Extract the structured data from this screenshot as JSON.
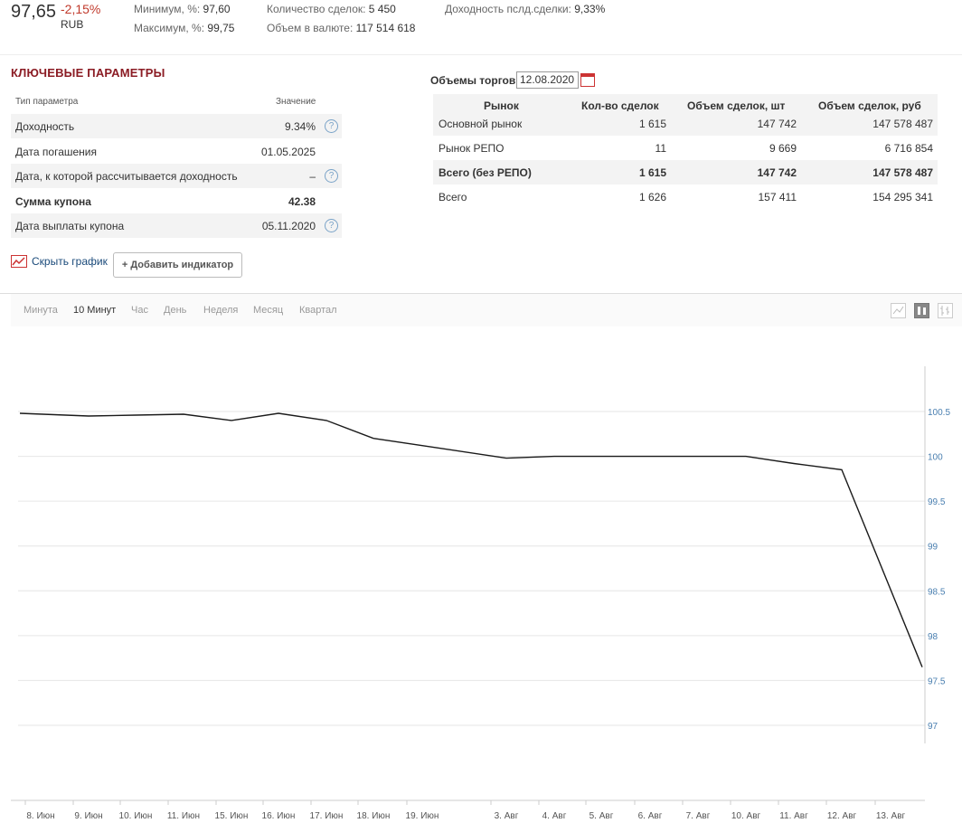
{
  "header": {
    "price": "97,65",
    "change": "-2,15%",
    "currency": "RUB",
    "stats": [
      {
        "label": "Минимум, %:",
        "value": "97,60"
      },
      {
        "label": "Максимум, %:",
        "value": "99,75"
      },
      {
        "label": "Количество сделок:",
        "value": "5 450"
      },
      {
        "label": "Объем в валюте:",
        "value": "117 514 618"
      },
      {
        "label": "Доходность пслд.сделки:",
        "value": "9,33%"
      }
    ]
  },
  "key_params": {
    "title": "КЛЮЧЕВЫЕ ПАРАМЕТРЫ",
    "col_name": "Тип параметра",
    "col_value": "Значение",
    "rows": [
      {
        "name": "Доходность",
        "value": "9.34%",
        "help": true,
        "bold": false
      },
      {
        "name": "Дата погашения",
        "value": "01.05.2025",
        "help": false,
        "bold": false
      },
      {
        "name": "Дата, к которой рассчитывается доходность",
        "value": "–",
        "help": true,
        "bold": false
      },
      {
        "name": "Сумма купона",
        "value": "42.38",
        "help": false,
        "bold": true
      },
      {
        "name": "Дата выплаты купона",
        "value": "05.11.2020",
        "help": true,
        "bold": false
      }
    ],
    "hide_chart": "Скрыть график",
    "add_indicator": "+ Добавить индикатор"
  },
  "volumes": {
    "title": "Объемы торгов",
    "date": "12.08.2020",
    "headers": [
      "Рынок",
      "Кол-во сделок",
      "Объем сделок, шт",
      "Объем сделок, руб"
    ],
    "rows": [
      {
        "market": "Основной рынок",
        "count": "1 615",
        "qty": "147 742",
        "rub": "147 578 487",
        "bold": false
      },
      {
        "market": "Рынок РЕПО",
        "count": "11",
        "qty": "9 669",
        "rub": "6 716 854",
        "bold": false
      },
      {
        "market": "Всего (без РЕПО)",
        "count": "1 615",
        "qty": "147 742",
        "rub": "147 578 487",
        "bold": true
      },
      {
        "market": "Всего",
        "count": "1 626",
        "qty": "157 411",
        "rub": "154 295 341",
        "bold": false
      }
    ]
  },
  "chart_controls": {
    "periods": [
      "Минута",
      "10 Минут",
      "Час",
      "День",
      "Неделя",
      "Месяц",
      "Квартал"
    ],
    "active_period": "10 Минут",
    "chart_types": [
      "line-chart-icon",
      "candlestick-icon",
      "ohlc-bars-icon"
    ],
    "active_type": "candlestick-icon"
  },
  "chart_data": {
    "type": "line",
    "title": "",
    "xlabel": "",
    "ylabel": "",
    "x_ticks": [
      "8. Июн",
      "9. Июн",
      "10. Июн",
      "11. Июн",
      "15. Июн",
      "16. Июн",
      "17. Июн",
      "18. Июн",
      "19. Июн",
      "3. Авг",
      "4. Авг",
      "5. Авг",
      "6. Авг",
      "7. Авг",
      "10. Авг",
      "11. Авг",
      "12. Авг",
      "13. Авг"
    ],
    "y_ticks": [
      97,
      97.5,
      98,
      98.5,
      99,
      99.5,
      100,
      100.5
    ],
    "ylim": [
      97,
      100.5
    ],
    "grid": true,
    "series": [
      {
        "x": [
          "8. Июн",
          "9. Июн",
          "10. Июн",
          "11. Июн",
          "15. Июн",
          "16. Июн",
          "17. Июн",
          "18. Июн",
          "19. Июн",
          "3. Авг",
          "4. Авг",
          "5. Авг",
          "6. Авг",
          "7. Авг",
          "10. Авг",
          "11. Авг",
          "12. Авг",
          "13. Авг"
        ],
        "values": [
          100.48,
          100.45,
          100.46,
          100.47,
          100.4,
          100.48,
          100.4,
          100.2,
          100.12,
          99.98,
          100.0,
          100.0,
          100.0,
          100.0,
          100.0,
          99.92,
          99.85,
          97.65
        ]
      }
    ]
  }
}
